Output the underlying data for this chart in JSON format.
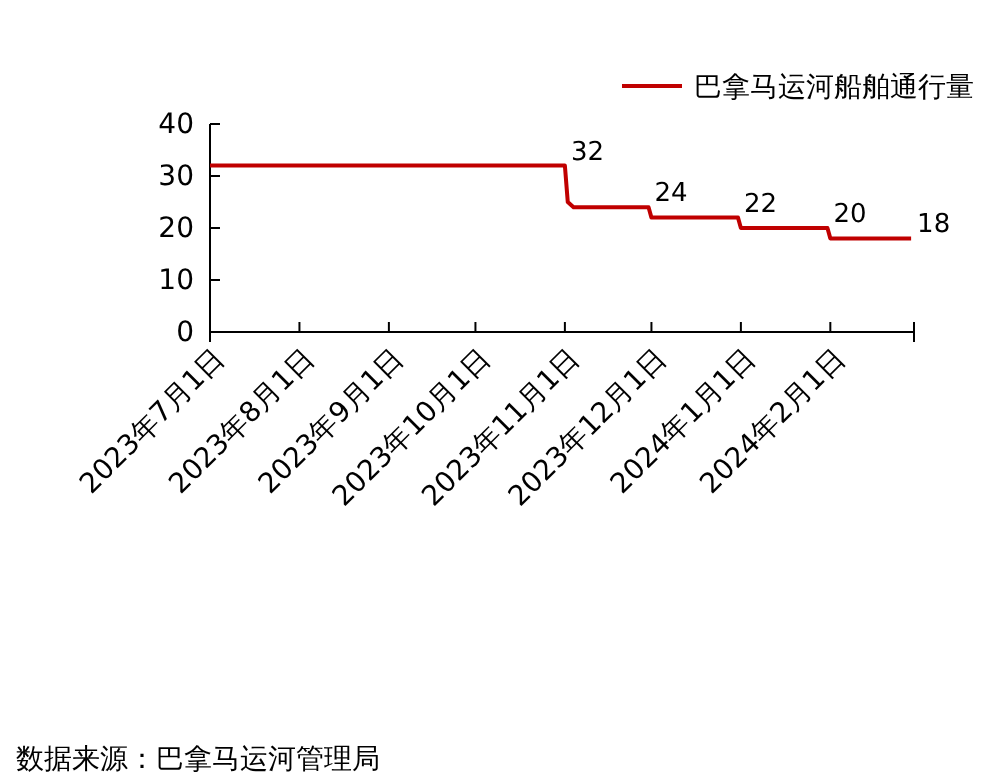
{
  "chart_data": {
    "type": "line",
    "x": [
      "2023-07-01",
      "2023-11-01",
      "2023-11-02",
      "2023-11-04",
      "2023-11-30",
      "2023-12-01",
      "2023-12-31",
      "2024-01-01",
      "2024-01-31",
      "2024-02-01",
      "2024-02-29"
    ],
    "series": [
      {
        "name": "巴拿马运河船舶通行量",
        "color": "#c00000",
        "values": [
          32,
          32,
          25,
          24,
          24,
          22,
          22,
          20,
          20,
          18,
          18
        ],
        "value_labels": [
          null,
          "32",
          null,
          null,
          "24",
          null,
          "22",
          null,
          "20",
          null,
          "18"
        ]
      }
    ],
    "xlim": [
      "2023-07-01",
      "2024-03-01"
    ],
    "xticks": [
      {
        "value": "2023-07-01",
        "label": "2023年7月1日"
      },
      {
        "value": "2023-08-01",
        "label": "2023年8月1日"
      },
      {
        "value": "2023-09-01",
        "label": "2023年9月1日"
      },
      {
        "value": "2023-10-01",
        "label": "2023年10月1日"
      },
      {
        "value": "2023-11-01",
        "label": "2023年11月1日"
      },
      {
        "value": "2023-12-01",
        "label": "2023年12月1日"
      },
      {
        "value": "2024-01-01",
        "label": "2024年1月1日"
      },
      {
        "value": "2024-02-01",
        "label": "2024年2月1日"
      },
      {
        "value": "2024-03-01",
        "label": null
      }
    ],
    "ylim": [
      0,
      40
    ],
    "yticks": [
      0,
      10,
      20,
      30,
      40
    ],
    "legend": "top right",
    "grid": false,
    "marker": "none",
    "line_style": "solid",
    "annotations": [
      "数据来源：巴拿马运河管理局"
    ]
  }
}
